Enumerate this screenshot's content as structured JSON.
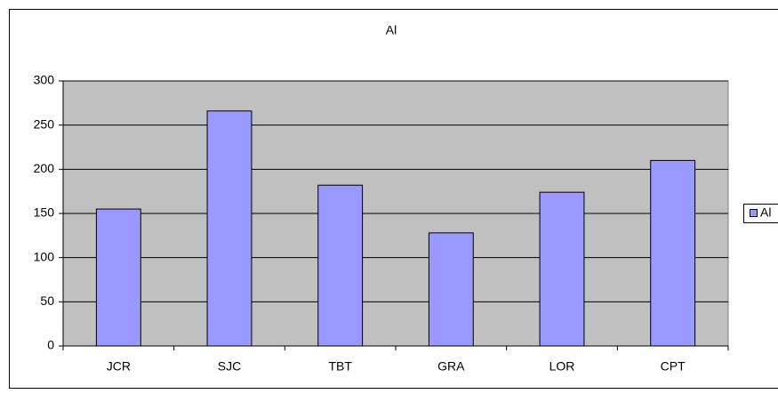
{
  "chart_data": {
    "type": "bar",
    "title": "Al",
    "categories": [
      "JCR",
      "SJC",
      "TBT",
      "GRA",
      "LOR",
      "CPT"
    ],
    "series": [
      {
        "name": "Al",
        "color": "#9999ff",
        "values": [
          155,
          266,
          182,
          128,
          174,
          210
        ]
      }
    ],
    "ylim": [
      0,
      300
    ],
    "yticks": [
      0,
      50,
      100,
      150,
      200,
      250,
      300
    ],
    "grid": true,
    "legend": "right"
  }
}
